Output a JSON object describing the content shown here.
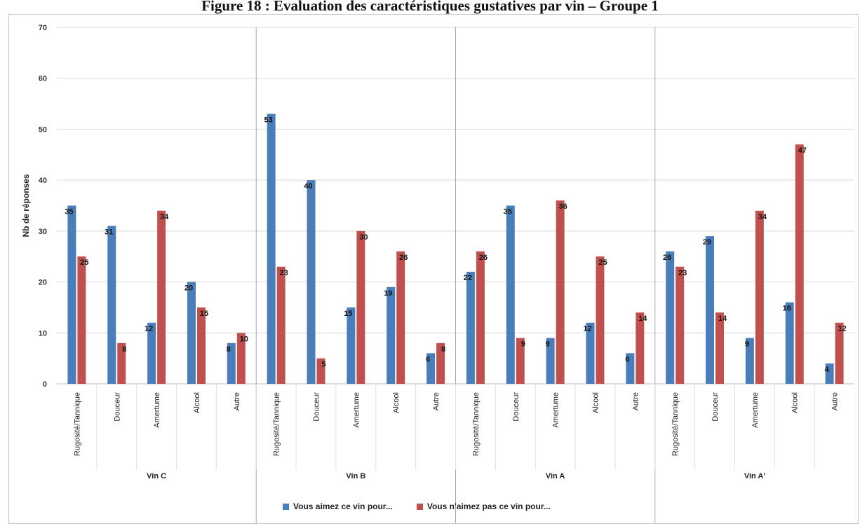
{
  "figure_title": "Figure 18 : Évaluation des caractéristiques gustatives par vin – Groupe 1",
  "colors": {
    "liked": "#4a7ebb",
    "disliked": "#c0504d",
    "grid": "#d9d9d9",
    "separator": "#a6a6a6"
  },
  "chart_data": {
    "type": "bar",
    "ylabel": "Nb de réponses",
    "ylim": [
      0,
      70
    ],
    "yticks": [
      0,
      10,
      20,
      30,
      40,
      50,
      60,
      70
    ],
    "grid": true,
    "legend_position": "bottom",
    "groups": [
      {
        "name": "Vin C",
        "categories": [
          "Rugosité/Tannique",
          "Douceur",
          "Amertume",
          "Alcool",
          "Autre"
        ]
      },
      {
        "name": "Vin B",
        "categories": [
          "Rugosité/Tannique",
          "Douceur",
          "Amertume",
          "Alcool",
          "Autre"
        ]
      },
      {
        "name": "Vin A",
        "categories": [
          "Rugosité/Tannique",
          "Douceur",
          "Amertume",
          "Alcool",
          "Autre"
        ]
      },
      {
        "name": "Vin A'",
        "categories": [
          "Rugosité/Tannique",
          "Douceur",
          "Amertume",
          "Alcool",
          "Autre"
        ]
      }
    ],
    "series": [
      {
        "name": "Vous aimez ce vin pour...",
        "values": [
          35,
          31,
          12,
          20,
          8,
          53,
          40,
          15,
          19,
          6,
          22,
          35,
          9,
          12,
          6,
          26,
          29,
          9,
          16,
          4
        ]
      },
      {
        "name": "Vous n'aimez pas ce vin pour...",
        "values": [
          25,
          8,
          34,
          15,
          10,
          23,
          5,
          30,
          26,
          8,
          26,
          9,
          36,
          25,
          14,
          23,
          14,
          34,
          47,
          12
        ]
      }
    ]
  }
}
